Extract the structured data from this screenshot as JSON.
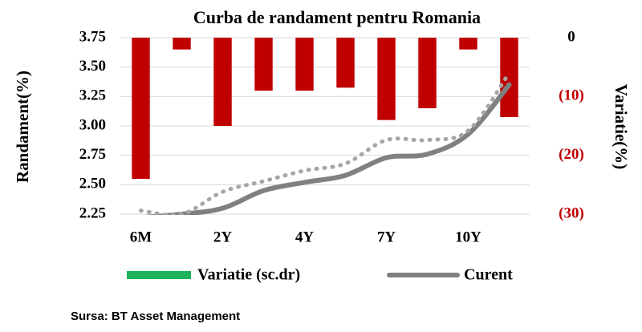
{
  "chart_data": {
    "type": "bar-line",
    "title": "Curba de randament pentru Romania",
    "y_label": "Randament(%)",
    "y2_label": "Variatie(%)",
    "source": "Sursa: BT Asset Management",
    "categories": [
      "6M",
      null,
      "2Y",
      null,
      "4Y",
      null,
      "7Y",
      null,
      "10Y",
      null
    ],
    "series": [
      {
        "name": "Variatie (sc.dr)",
        "type": "bar",
        "axis": "y2",
        "color": "#c00000",
        "legend_color": "#1fb05a",
        "values": [
          -24,
          -2,
          -15,
          -9,
          -9,
          -8.5,
          -14,
          -12,
          -2,
          -13.5
        ]
      },
      {
        "name": "Curent",
        "type": "line",
        "color": "#808080",
        "values": [
          2.22,
          2.25,
          2.3,
          2.45,
          2.52,
          2.58,
          2.73,
          2.76,
          2.93,
          3.35
        ]
      },
      {
        "type": "line",
        "dashed": true,
        "color": "#a6a6a6",
        "values": [
          2.28,
          2.25,
          2.44,
          2.53,
          2.62,
          2.68,
          2.88,
          2.88,
          2.96,
          3.45
        ]
      }
    ],
    "ylim": [
      2.25,
      3.75
    ],
    "yticks": [
      2.25,
      {
        "value": 2.5,
        "label": "2.50"
      },
      2.75,
      {
        "value": 3,
        "label": "3.00"
      },
      3.25,
      {
        "value": 3.5,
        "label": "3.50"
      },
      3.75
    ],
    "y2lim": [
      -30,
      0
    ],
    "y2ticks": [
      {
        "value": -30,
        "label": "(30)"
      },
      {
        "value": -20,
        "label": "(20)"
      },
      {
        "value": -10,
        "label": "(10)"
      },
      0
    ],
    "grid": true
  }
}
